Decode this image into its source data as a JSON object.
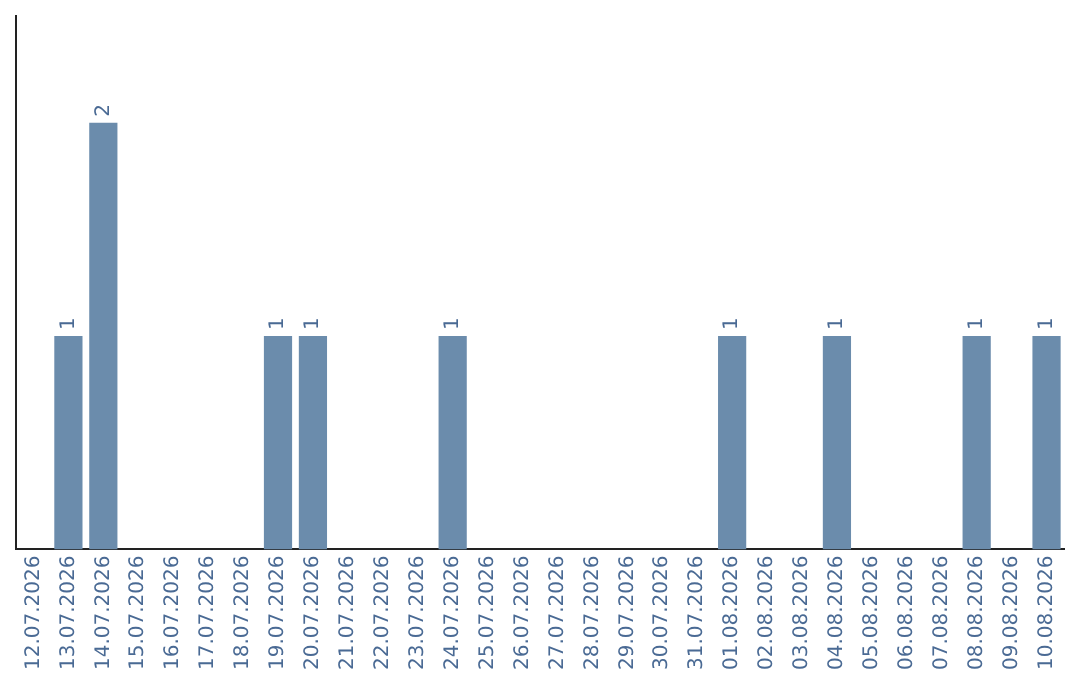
{
  "chart_data": {
    "type": "bar",
    "categories": [
      "12.07.2026",
      "13.07.2026",
      "14.07.2026",
      "15.07.2026",
      "16.07.2026",
      "17.07.2026",
      "18.07.2026",
      "19.07.2026",
      "20.07.2026",
      "21.07.2026",
      "22.07.2026",
      "23.07.2026",
      "24.07.2026",
      "25.07.2026",
      "26.07.2026",
      "27.07.2026",
      "28.07.2026",
      "29.07.2026",
      "30.07.2026",
      "31.07.2026",
      "01.08.2026",
      "02.08.2026",
      "03.08.2026",
      "04.08.2026",
      "05.08.2026",
      "06.08.2026",
      "07.08.2026",
      "08.08.2026",
      "09.08.2026",
      "10.08.2026"
    ],
    "values": [
      0,
      1,
      2,
      0,
      0,
      0,
      0,
      1,
      1,
      0,
      0,
      0,
      1,
      0,
      0,
      0,
      0,
      0,
      0,
      0,
      1,
      0,
      0,
      1,
      0,
      0,
      0,
      1,
      0,
      1
    ],
    "value_labels": [
      null,
      "1",
      "2",
      null,
      null,
      null,
      null,
      "1",
      "1",
      null,
      null,
      null,
      "1",
      null,
      null,
      null,
      null,
      null,
      null,
      null,
      "1",
      null,
      null,
      "1",
      null,
      null,
      null,
      "1",
      null,
      "1"
    ],
    "color": "#6b8cac",
    "grid": false,
    "legend": false,
    "tick_labels": "x"
  }
}
